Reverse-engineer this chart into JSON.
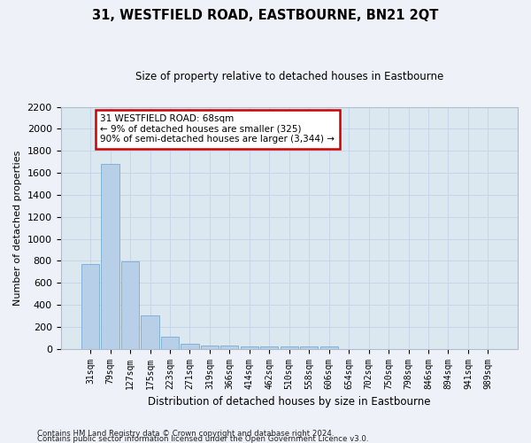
{
  "title": "31, WESTFIELD ROAD, EASTBOURNE, BN21 2QT",
  "subtitle": "Size of property relative to detached houses in Eastbourne",
  "xlabel": "Distribution of detached houses by size in Eastbourne",
  "ylabel": "Number of detached properties",
  "categories": [
    "31sqm",
    "79sqm",
    "127sqm",
    "175sqm",
    "223sqm",
    "271sqm",
    "319sqm",
    "366sqm",
    "414sqm",
    "462sqm",
    "510sqm",
    "558sqm",
    "606sqm",
    "654sqm",
    "702sqm",
    "750sqm",
    "798sqm",
    "846sqm",
    "894sqm",
    "941sqm",
    "989sqm"
  ],
  "values": [
    770,
    1680,
    795,
    300,
    110,
    42,
    32,
    28,
    24,
    22,
    20,
    18,
    22,
    0,
    0,
    0,
    0,
    0,
    0,
    0,
    0
  ],
  "bar_color": "#b8cfe8",
  "bar_edge_color": "#7aaad0",
  "annotation_text": "31 WESTFIELD ROAD: 68sqm\n← 9% of detached houses are smaller (325)\n90% of semi-detached houses are larger (3,344) →",
  "annotation_box_color": "#ffffff",
  "annotation_border_color": "#cc0000",
  "ylim": [
    0,
    2200
  ],
  "yticks": [
    0,
    200,
    400,
    600,
    800,
    1000,
    1200,
    1400,
    1600,
    1800,
    2000,
    2200
  ],
  "grid_color": "#c8d4e8",
  "bg_color": "#dce8f0",
  "fig_bg_color": "#eef2f8",
  "footer1": "Contains HM Land Registry data © Crown copyright and database right 2024.",
  "footer2": "Contains public sector information licensed under the Open Government Licence v3.0."
}
